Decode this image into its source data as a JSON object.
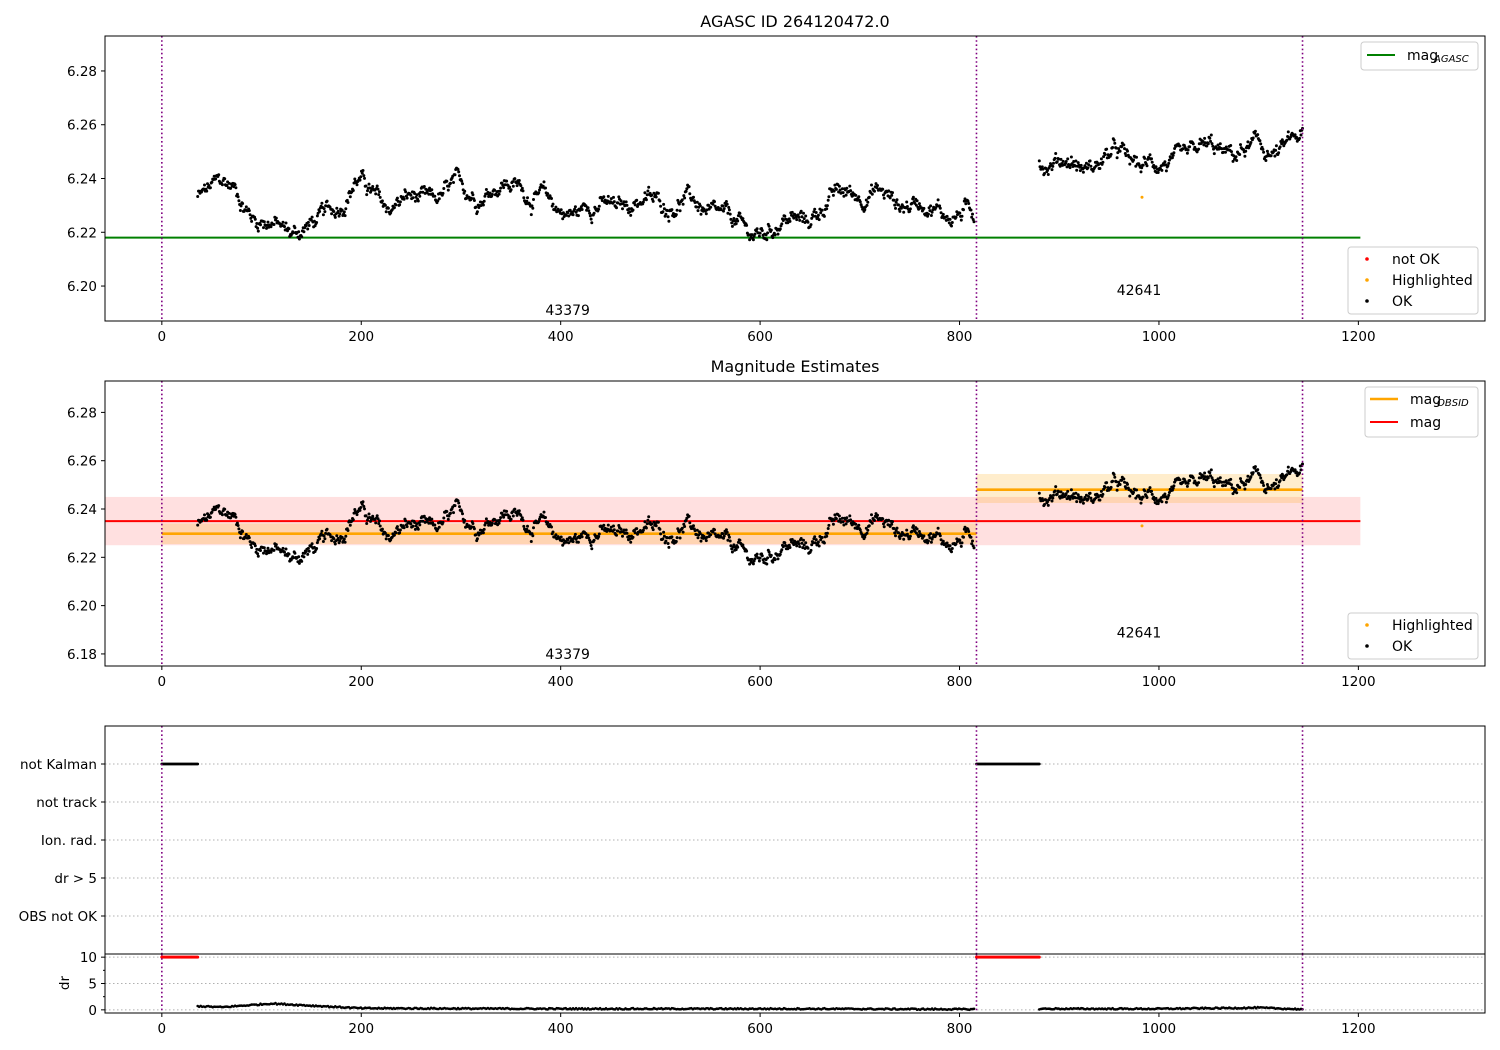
{
  "chart_data": [
    {
      "type": "scatter",
      "title": "AGASC ID 264120472.0",
      "xlim": [
        -57,
        1327
      ],
      "ylim": [
        6.187,
        6.293
      ],
      "yticks": [
        "6.20",
        "6.22",
        "6.24",
        "6.26",
        "6.28"
      ],
      "xticks": [
        "0",
        "200",
        "400",
        "600",
        "800",
        "1000",
        "1200"
      ],
      "obs_boundaries": [
        0,
        817,
        1144
      ],
      "obs_labels": [
        {
          "text": "43379",
          "x": 407,
          "y": 6.191
        },
        {
          "text": "42641",
          "x": 980,
          "y": 6.1985
        }
      ],
      "reference_line": {
        "label": "mag",
        "sub": "AGASC",
        "value": 6.218,
        "x": [
          -57,
          1202
        ],
        "color": "#008000"
      },
      "series": [
        {
          "name": "not OK",
          "color": "#ff0000",
          "points": []
        },
        {
          "name": "Highlighted",
          "color": "#ffa500",
          "points": [
            [
              983,
              6.233
            ]
          ]
        },
        {
          "name": "OK",
          "color": "#000000",
          "segments": [
            {
              "knots": [
                [
                  36,
                  6.235
                ],
                [
                  75,
                  6.237
                ],
                [
                  95,
                  6.224
                ],
                [
                  135,
                  6.221
                ],
                [
                  155,
                  6.222
                ],
                [
                  195,
                  6.239
                ],
                [
                  225,
                  6.23
                ],
                [
                  265,
                  6.232
                ],
                [
                  300,
                  6.235
                ],
                [
                  360,
                  6.238
                ],
                [
                  395,
                  6.228
                ],
                [
                  450,
                  6.23
                ],
                [
                  520,
                  6.232
                ],
                [
                  560,
                  6.226
                ],
                [
                  585,
                  6.219
                ],
                [
                  650,
                  6.226
                ],
                [
                  690,
                  6.236
                ],
                [
                  740,
                  6.232
                ],
                [
                  815,
                  6.226
                ]
              ],
              "dx": 0.75
            },
            {
              "knots": [
                [
                  880,
                  6.247
                ],
                [
                  920,
                  6.245
                ],
                [
                  960,
                  6.248
                ],
                [
                  1000,
                  6.244
                ],
                [
                  1040,
                  6.249
                ],
                [
                  1080,
                  6.25
                ],
                [
                  1110,
                  6.25
                ],
                [
                  1144,
                  6.254
                ]
              ],
              "dx": 0.75
            }
          ]
        }
      ],
      "legend_upper": "upper right",
      "legend_lower": "lower right"
    },
    {
      "type": "scatter",
      "title": "Magnitude Estimates",
      "xlim": [
        -57,
        1327
      ],
      "ylim": [
        6.175,
        6.293
      ],
      "yticks": [
        "6.18",
        "6.20",
        "6.22",
        "6.24",
        "6.26",
        "6.28"
      ],
      "xticks": [
        "0",
        "200",
        "400",
        "600",
        "800",
        "1000",
        "1200"
      ],
      "obs_boundaries": [
        0,
        817,
        1144
      ],
      "obs_labels": [
        {
          "text": "43379",
          "x": 407,
          "y": 6.18
        },
        {
          "text": "42641",
          "x": 980,
          "y": 6.1888
        }
      ],
      "mag_obsid": {
        "label": "mag",
        "sub": "OBSID",
        "color": "#ffa500",
        "segments": [
          {
            "x": [
              0,
              817
            ],
            "value": 6.2298,
            "band": [
              6.2255,
              6.234
            ]
          },
          {
            "x": [
              817,
              1144
            ],
            "value": 6.248,
            "band": [
              6.2425,
              6.2545
            ]
          }
        ]
      },
      "mag": {
        "label": "mag",
        "color": "#ff0000",
        "value": 6.235,
        "band": [
          6.225,
          6.245
        ],
        "x": [
          -57,
          1202
        ]
      },
      "series": [
        {
          "name": "Highlighted",
          "color": "#ffa500",
          "points": [
            [
              983,
              6.233
            ]
          ]
        },
        {
          "name": "OK",
          "color": "#000000"
        }
      ],
      "legend_upper": "upper right",
      "legend_lower": "lower right"
    },
    {
      "type": "scatter",
      "title": "",
      "categories": [
        "not Kalman",
        "not track",
        "Ion. rad.",
        "dr > 5",
        "OBS not OK"
      ],
      "flagged_ranges": [
        {
          "flag": "not Kalman",
          "x": [
            0,
            36
          ]
        },
        {
          "flag": "not Kalman",
          "x": [
            817,
            880
          ]
        }
      ],
      "xlim": [
        -57,
        1327
      ]
    },
    {
      "type": "scatter",
      "title": "",
      "ylabel": "dr",
      "ylim": [
        -0.6,
        10.6
      ],
      "yticks": [
        "0",
        "5",
        "10"
      ],
      "xticks": [
        "0",
        "200",
        "400",
        "600",
        "800",
        "1000",
        "1200"
      ],
      "xlim": [
        -57,
        1327
      ],
      "capped": {
        "color": "#ff0000",
        "value": 10,
        "ranges": [
          [
            0,
            36
          ],
          [
            817,
            880
          ]
        ]
      },
      "dr_segments": [
        {
          "knots": [
            [
              36,
              0.7
            ],
            [
              60,
              0.5
            ],
            [
              110,
              1.2
            ],
            [
              150,
              0.8
            ],
            [
              200,
              0.3
            ],
            [
              400,
              0.2
            ],
            [
              650,
              0.2
            ],
            [
              815,
              0.1
            ]
          ]
        },
        {
          "knots": [
            [
              880,
              0.2
            ],
            [
              1000,
              0.2
            ],
            [
              1100,
              0.4
            ],
            [
              1144,
              0.1
            ]
          ]
        }
      ]
    }
  ]
}
